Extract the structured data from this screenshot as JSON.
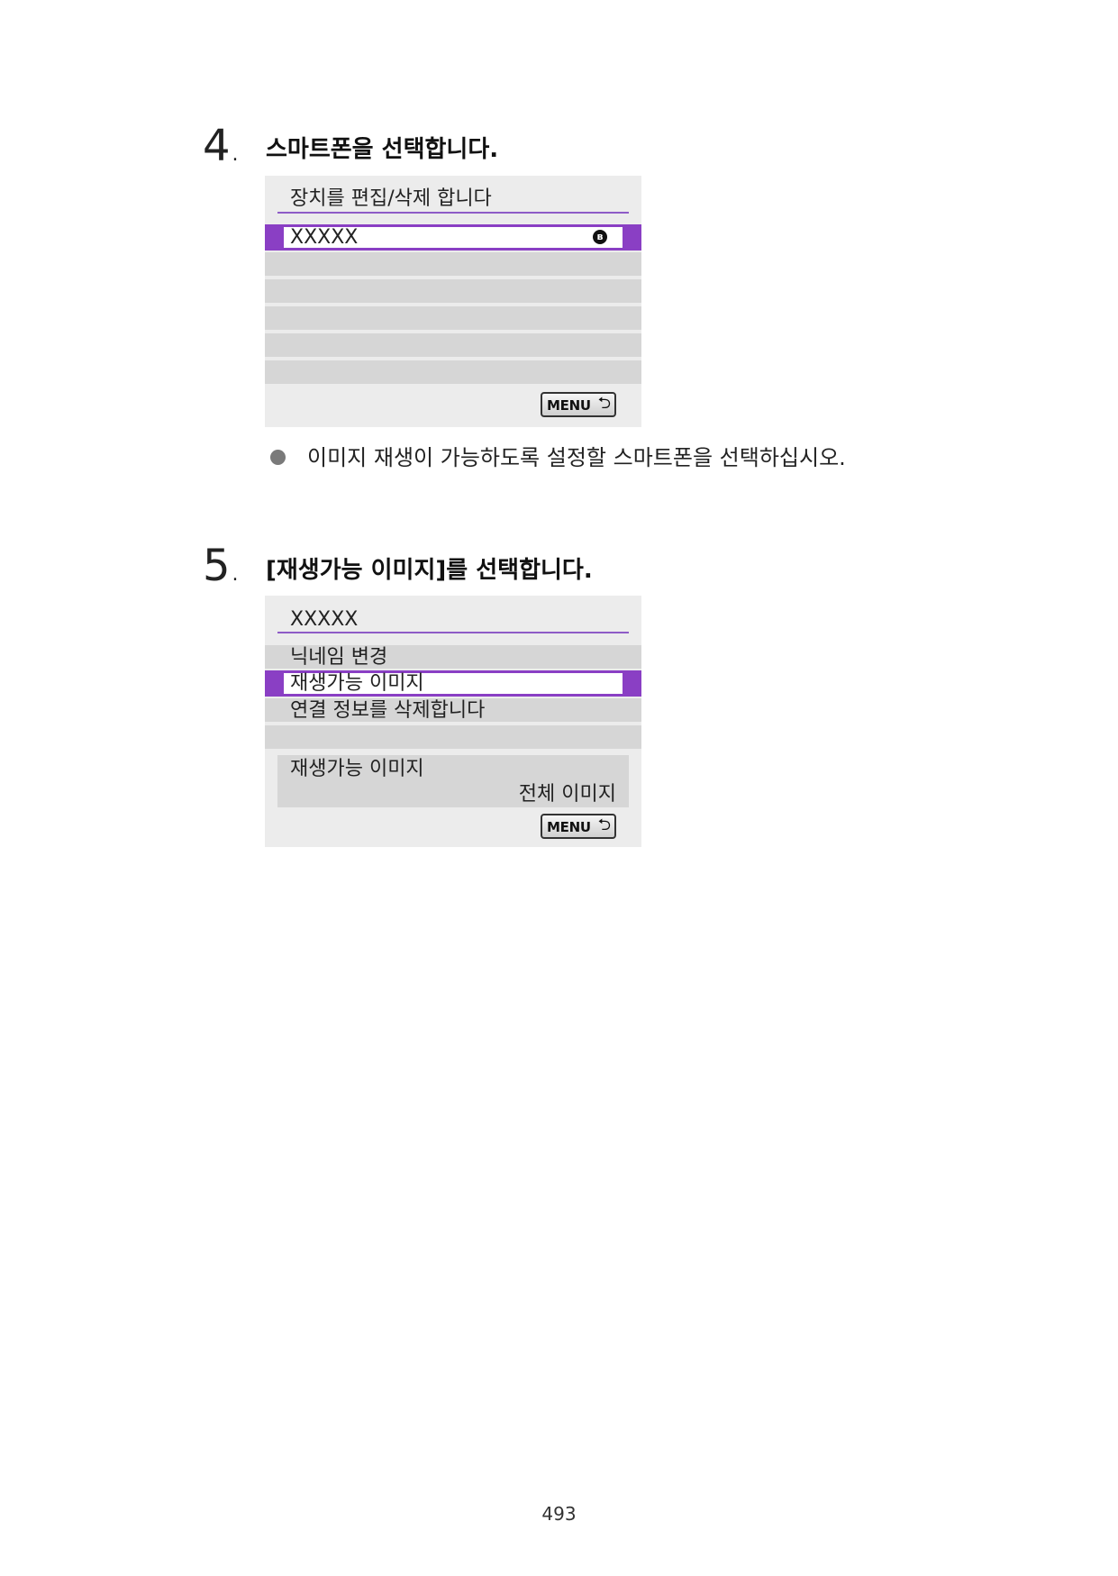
{
  "step4": {
    "number": "4",
    "title": "스마트폰을 선택합니다.",
    "screen": {
      "title": "장치를 편집/삭제 합니다",
      "selected_item": "XXXXX",
      "bluetooth_icon": "bluetooth-icon",
      "menu_label": "MENU",
      "return_icon": "return-arrow-icon"
    },
    "bullet": "이미지 재생이 가능하도록 설정할 스마트폰을 선택하십시오."
  },
  "step5": {
    "number": "5",
    "title": "[재생가능 이미지]를 선택합니다.",
    "screen": {
      "title": "XXXXX",
      "items": [
        "닉네임 변경",
        "재생가능 이미지",
        "연결 정보를 삭제합니다"
      ],
      "selected_index": 1,
      "info_label": "재생가능 이미지",
      "info_value": "전체 이미지",
      "menu_label": "MENU",
      "return_icon": "return-arrow-icon"
    }
  },
  "page_number": "493",
  "colors": {
    "accent": "#8a3fc4",
    "panel": "#ececec",
    "row": "#d6d6d6"
  }
}
